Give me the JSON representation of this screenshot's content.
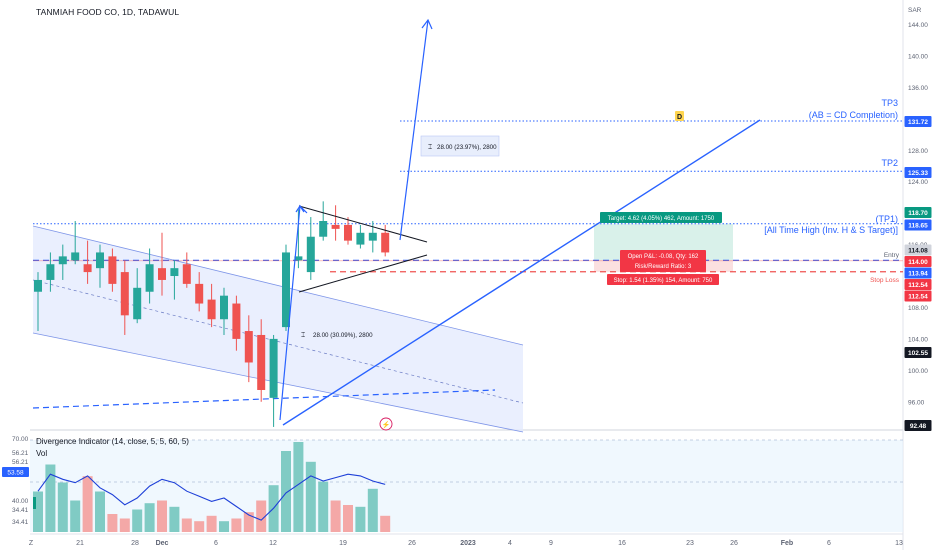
{
  "header": {
    "title": "TANMIAH FOOD CO, 1D, TADAWUL",
    "currency": "SAR"
  },
  "indicator": {
    "divergence_label": "Divergence Indicator (14, close, 5, 5, 60, 5)",
    "vol_label": "Vol"
  },
  "colors": {
    "up": "#26a69a",
    "down": "#ef5350",
    "up_vol": "#80cbc4",
    "down_vol": "#f4a8a7",
    "blue": "#2962ff",
    "channel_fill": "#e3e9fd",
    "target_zone": "#d9f1ea",
    "stop_zone": "#fbe0e0"
  },
  "chart_data": {
    "type": "candlestick",
    "symbol": "TANMIAH FOOD CO",
    "interval": "1D",
    "exchange": "TADAWUL",
    "price_axis": {
      "ticks": [
        "144.00",
        "140.00",
        "136.00",
        "132.00",
        "128.00",
        "124.00",
        "120.00",
        "116.00",
        "112.00",
        "108.00",
        "104.00",
        "100.00",
        "96.00"
      ],
      "range": [
        92,
        146
      ]
    },
    "time_axis": {
      "labels": [
        "Z",
        "21",
        "28",
        "Dec",
        "6",
        "12",
        "19",
        "26",
        "2023",
        "4",
        "9",
        "16",
        "23",
        "26",
        "Feb",
        "6",
        "13"
      ]
    },
    "candles": [
      {
        "o": 110.0,
        "h": 112.5,
        "l": 105.0,
        "c": 111.5
      },
      {
        "o": 111.5,
        "h": 115.0,
        "l": 110.0,
        "c": 113.5
      },
      {
        "o": 113.5,
        "h": 116.0,
        "l": 111.5,
        "c": 114.5
      },
      {
        "o": 114.0,
        "h": 119.0,
        "l": 113.5,
        "c": 115.0
      },
      {
        "o": 113.5,
        "h": 116.5,
        "l": 111.0,
        "c": 112.5
      },
      {
        "o": 113.0,
        "h": 116.0,
        "l": 110.5,
        "c": 115.0
      },
      {
        "o": 114.5,
        "h": 115.5,
        "l": 110.0,
        "c": 111.0
      },
      {
        "o": 112.5,
        "h": 114.0,
        "l": 104.5,
        "c": 107.0
      },
      {
        "o": 106.5,
        "h": 113.0,
        "l": 106.0,
        "c": 110.5
      },
      {
        "o": 110.0,
        "h": 115.5,
        "l": 108.5,
        "c": 113.5
      },
      {
        "o": 113.0,
        "h": 117.5,
        "l": 109.5,
        "c": 111.5
      },
      {
        "o": 112.0,
        "h": 114.0,
        "l": 109.0,
        "c": 113.0
      },
      {
        "o": 113.5,
        "h": 115.0,
        "l": 110.5,
        "c": 111.0
      },
      {
        "o": 111.0,
        "h": 112.5,
        "l": 107.5,
        "c": 108.5
      },
      {
        "o": 109.0,
        "h": 111.0,
        "l": 105.5,
        "c": 106.5
      },
      {
        "o": 106.5,
        "h": 110.5,
        "l": 104.5,
        "c": 109.5
      },
      {
        "o": 108.5,
        "h": 109.5,
        "l": 102.5,
        "c": 104.0
      },
      {
        "o": 105.0,
        "h": 107.0,
        "l": 98.5,
        "c": 101.0
      },
      {
        "o": 104.5,
        "h": 106.5,
        "l": 96.0,
        "c": 97.5
      },
      {
        "o": 96.5,
        "h": 104.5,
        "l": 92.8,
        "c": 104.0
      },
      {
        "o": 105.5,
        "h": 116.0,
        "l": 105.0,
        "c": 115.0
      },
      {
        "o": 114.0,
        "h": 120.5,
        "l": 113.0,
        "c": 114.5
      },
      {
        "o": 112.5,
        "h": 119.5,
        "l": 111.5,
        "c": 117.0
      },
      {
        "o": 117.0,
        "h": 121.5,
        "l": 116.5,
        "c": 119.0
      },
      {
        "o": 118.5,
        "h": 121.0,
        "l": 116.5,
        "c": 118.0
      },
      {
        "o": 118.5,
        "h": 119.5,
        "l": 116.0,
        "c": 116.5
      },
      {
        "o": 116.0,
        "h": 118.5,
        "l": 115.5,
        "c": 117.5
      },
      {
        "o": 116.5,
        "h": 119.0,
        "l": 115.0,
        "c": 117.5
      },
      {
        "o": 117.5,
        "h": 118.5,
        "l": 114.5,
        "c": 115.0
      }
    ],
    "volume_rel": [
      0.45,
      0.75,
      0.55,
      0.35,
      0.62,
      0.45,
      0.2,
      0.15,
      0.25,
      0.32,
      0.35,
      0.28,
      0.15,
      0.12,
      0.18,
      0.12,
      0.15,
      0.22,
      0.35,
      0.52,
      0.9,
      1.0,
      0.78,
      0.56,
      0.35,
      0.3,
      0.28,
      0.48,
      0.18
    ],
    "oscillator": {
      "axis_labels": [
        "70.00",
        "56.21",
        "56.21",
        "53.58",
        "40.00",
        "34.41",
        "34.41"
      ],
      "values": [
        44,
        54,
        51,
        49,
        53,
        46,
        42,
        36,
        40,
        47,
        51,
        49,
        44,
        41,
        38,
        40,
        35,
        30,
        27,
        34,
        43,
        48,
        53,
        50,
        52,
        54,
        53,
        50,
        48
      ]
    },
    "price_labels": [
      {
        "value": "131.72",
        "style": "blue"
      },
      {
        "value": "125.33",
        "style": "blue"
      },
      {
        "value": "118.70",
        "style": "green"
      },
      {
        "value": "118.65",
        "style": "blue"
      },
      {
        "value": "114.08",
        "style": "gray"
      },
      {
        "value": "114.00",
        "style": "red"
      },
      {
        "value": "113.94",
        "style": "blue"
      },
      {
        "value": "112.54",
        "style": "red"
      },
      {
        "value": "112.54",
        "style": "red"
      },
      {
        "value": "102.55",
        "style": "black"
      },
      {
        "value": "92.48",
        "style": "black"
      }
    ],
    "levels": {
      "tp3": 131.72,
      "tp2": 125.33,
      "tp1": 118.65,
      "entry": 114.0,
      "stop": 112.54,
      "last": 113.94
    },
    "annotations": {
      "tp3_label": "TP3",
      "tp3_sub": "(AB = CD Completion)",
      "tp2_label": "TP2",
      "tp1_label": "(TP1)",
      "tp1_sub": "[All Time High (Inv. H & S Target)]",
      "entry_label": "Entry",
      "stop_label": "Stop Loss",
      "d_label": "D",
      "measure_top": "28.00 (23.97%), 2800",
      "measure_bottom": "28.00 (30.09%), 2800",
      "target_box": "Target: 4.62 (4.05%) 462, Amount: 1750",
      "open_pnl": "Open P&L: -0.08, Qty: 162",
      "risk_reward": "Risk/Reward Ratio: 3",
      "stop_box": "Stop: 1.54 (1.35%) 154, Amount: 750"
    },
    "grid": false,
    "legend": "none"
  }
}
